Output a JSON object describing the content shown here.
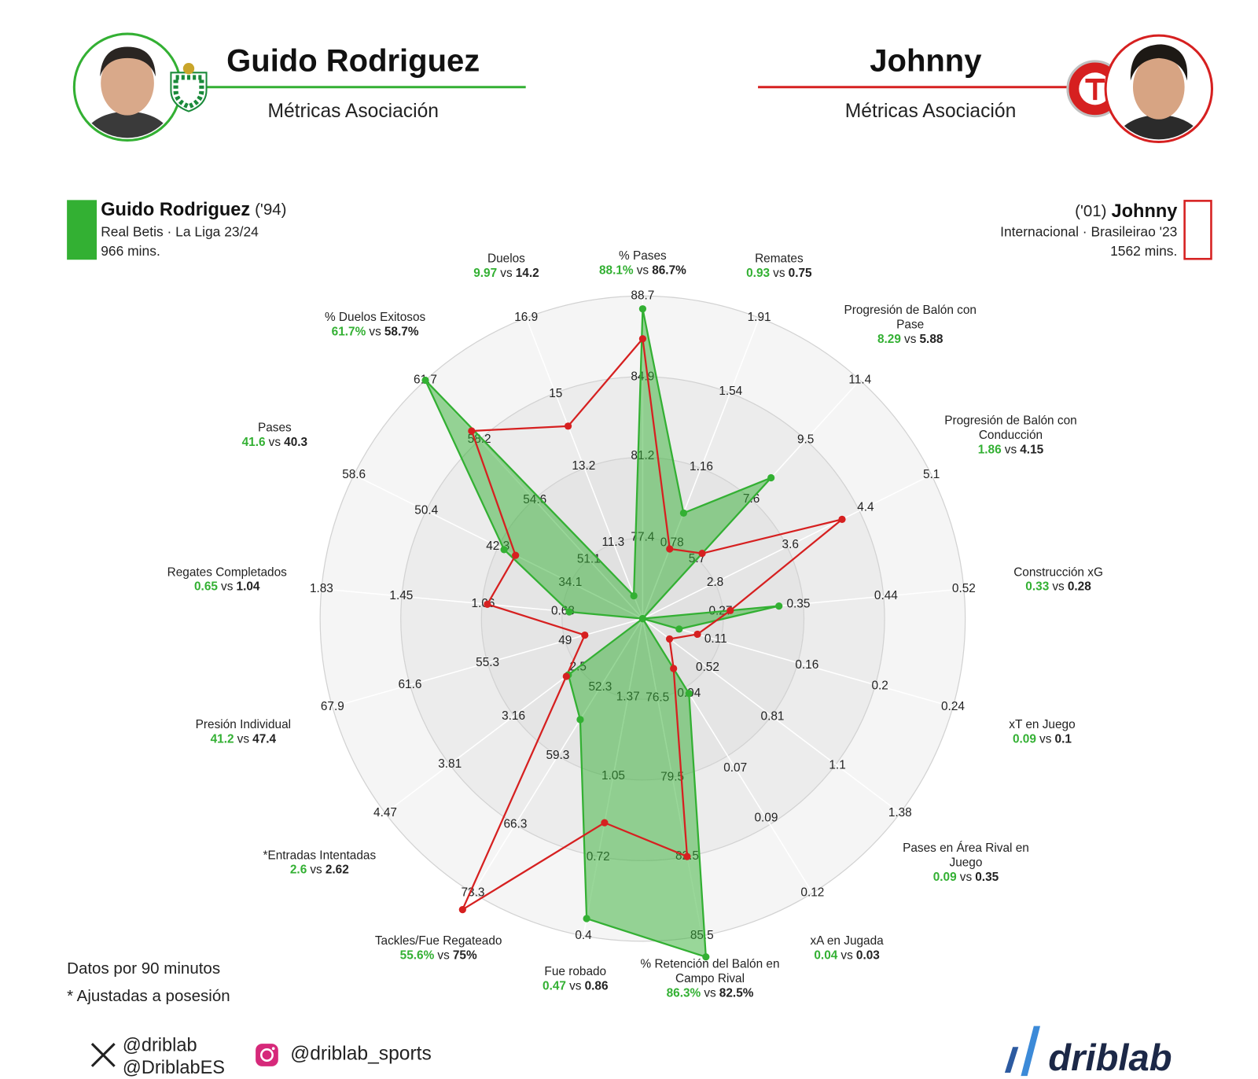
{
  "header": {
    "left": {
      "name": "Guido Rodriguez",
      "subtitle": "Métricas Asociación"
    },
    "right": {
      "name": "Johnny",
      "subtitle": "Métricas Asociación"
    }
  },
  "players": [
    {
      "year": "('94)",
      "team": "Real Betis · La Liga 23/24",
      "minutes": "966 mins."
    },
    {
      "year": "('01)",
      "team": "Internacional · Brasileirao '23",
      "minutes": "1562 mins."
    }
  ],
  "chart_data": {
    "type": "radar",
    "separator": "vs",
    "categories": [
      "% Pases",
      "Remates",
      "Progresión de Balón con Pase",
      "Progresión de Balón con Conducción",
      "Construcción xG",
      "xT en Juego",
      "Pases en Área Rival en Juego",
      "xA en Jugada",
      "% Retención del Balón en Campo Rival",
      "Fue robado",
      "Tackles/Fue Regateado",
      "*Entradas Intentadas",
      "Presión Individual",
      "Regates Completados",
      "Pases",
      "% Duelos Exitosos",
      "Duelos"
    ],
    "rlims": [
      [
        73.6,
        88.7
      ],
      [
        0.4,
        1.91
      ],
      [
        3.8,
        11.4
      ],
      [
        2.03,
        5.1
      ],
      [
        0.19,
        0.52
      ],
      [
        0.07,
        0.24
      ],
      [
        0.23,
        1.38
      ],
      [
        0.01,
        0.12
      ],
      [
        73.5,
        85.5
      ],
      [
        1.69,
        0.4
      ],
      [
        45.3,
        73.3
      ],
      [
        1.84,
        4.47
      ],
      [
        42.7,
        67.9
      ],
      [
        0.3,
        1.83
      ],
      [
        25.9,
        58.6
      ],
      [
        47.6,
        61.7
      ],
      [
        9.4,
        16.9
      ]
    ],
    "rticks": [
      [
        77.4,
        81.2,
        84.9,
        88.7
      ],
      [
        0.78,
        1.16,
        1.54,
        1.91
      ],
      [
        5.7,
        7.6,
        9.5,
        11.4
      ],
      [
        2.8,
        3.6,
        4.4,
        5.1
      ],
      [
        0.27,
        0.35,
        0.44,
        0.52
      ],
      [
        0.11,
        0.16,
        0.2,
        0.24
      ],
      [
        0.52,
        0.81,
        1.1,
        1.38
      ],
      [
        0.04,
        0.07,
        0.09,
        0.12
      ],
      [
        76.5,
        79.5,
        82.5,
        85.5
      ],
      [
        1.37,
        1.05,
        0.72,
        0.4
      ],
      [
        52.3,
        59.3,
        66.3,
        73.3
      ],
      [
        2.5,
        3.16,
        3.81,
        4.47
      ],
      [
        49,
        55.3,
        61.6,
        67.9
      ],
      [
        0.68,
        1.06,
        1.45,
        1.83
      ],
      [
        34.1,
        42.3,
        50.4,
        58.6
      ],
      [
        51.1,
        54.6,
        58.2,
        61.7
      ],
      [
        11.3,
        13.2,
        15,
        16.9
      ]
    ],
    "series": [
      {
        "name": "Guido Rodriguez",
        "color": "#33b033",
        "values": [
          88.1,
          0.93,
          8.29,
          1.86,
          0.33,
          0.09,
          0.09,
          0.04,
          86.3,
          0.47,
          55.6,
          2.6,
          41.2,
          0.65,
          41.6,
          61.7,
          9.97
        ],
        "value_labels": [
          "88.1%",
          "0.93",
          "8.29",
          "1.86",
          "0.33",
          "0.09",
          "0.09",
          "0.04",
          "86.3%",
          "0.47",
          "55.6%",
          "2.6",
          "41.2",
          "0.65",
          "41.6",
          "61.7%",
          "9.97"
        ]
      },
      {
        "name": "Johnny",
        "color": "#d62020",
        "values": [
          86.7,
          0.75,
          5.88,
          4.15,
          0.28,
          0.1,
          0.35,
          0.03,
          82.5,
          0.86,
          75,
          2.62,
          47.4,
          1.04,
          40.3,
          58.7,
          14.2
        ],
        "value_labels": [
          "86.7%",
          "0.75",
          "5.88",
          "4.15",
          "0.28",
          "0.1",
          "0.35",
          "0.03",
          "82.5%",
          "0.86",
          "75%",
          "2.62",
          "47.4",
          "1.04",
          "40.3",
          "58.7%",
          "14.2"
        ]
      }
    ]
  },
  "footer": {
    "notes": [
      "Datos por 90 minutos",
      "* Ajustadas a posesión"
    ],
    "twitter": [
      "@driblab",
      "@DriblabES"
    ],
    "instagram": "@driblab_sports",
    "brand": "driblab"
  }
}
